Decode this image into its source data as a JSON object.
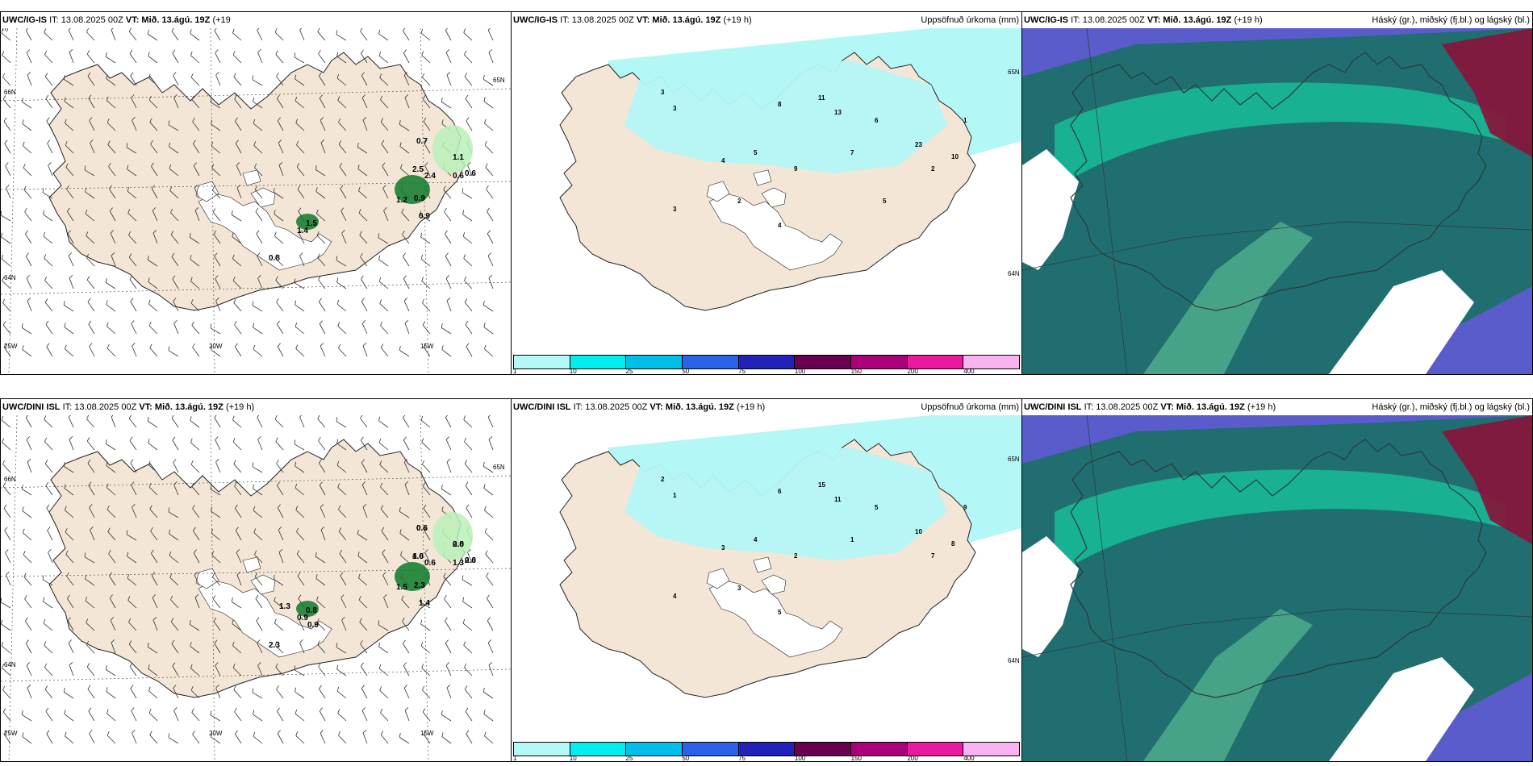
{
  "panels": [
    {
      "id": "p1",
      "header": {
        "src": "UWC/IG-IS",
        "it": "IT: 13.08.2025 00Z",
        "vt": "VT: Mið. 13.ágú. 19Z",
        "lead": "(+19",
        "wrap": "h)",
        "right": ""
      },
      "axis_labels": [
        "66N",
        "64N",
        "25W",
        "20W",
        "15W",
        "65N"
      ],
      "values": [
        "0.7",
        "1.1",
        "0.6",
        "2.5",
        "2.4",
        "0.6",
        "1.2",
        "0.9",
        "0.9",
        "1.5",
        "1.4",
        "0.8"
      ]
    },
    {
      "id": "p2",
      "header": {
        "src": "UWC/IG-IS",
        "it": "IT: 13.08.2025 00Z",
        "vt": "VT: Mið. 13.ágú. 19Z",
        "lead": "(+19 h)",
        "right": "Uppsöfnuð úrkoma (mm)"
      },
      "axis_labels": [
        "65N",
        "64N"
      ],
      "values": [
        "3",
        "3",
        "11",
        "13",
        "23",
        "10",
        "8",
        "6",
        "5",
        "4",
        "2",
        "1",
        "7",
        "9",
        "2",
        "3",
        "4",
        "5"
      ]
    },
    {
      "id": "p3",
      "header": {
        "src": "UWC/IG-IS",
        "it": "IT: 13.08.2025 00Z",
        "vt": "VT: Mið. 13.ágú. 19Z",
        "lead": "(+19 h)",
        "right": "Háský (gr.), miðský (fj.bl.) og lágský (bl.)"
      },
      "axis_labels": [],
      "values": []
    },
    {
      "id": "p4",
      "header": {
        "src": "UWC/DINI ISL",
        "it": "IT: 13.08.2025 00Z",
        "vt": "VT: Mið. 13.ágú. 19Z",
        "lead": "(+19 h)",
        "right": ""
      },
      "axis_labels": [
        "66N",
        "64N",
        "25W",
        "20W",
        "15W",
        "65N"
      ],
      "values": [
        "0.6",
        "0.8",
        "0.6",
        "1.6",
        "0.6",
        "1.3",
        "1.5",
        "2.3",
        "1.4",
        "0.8",
        "0.9",
        "2.3",
        "1.3",
        "0.9",
        "0.6",
        "2.0",
        "2.0",
        "4.0"
      ]
    },
    {
      "id": "p5",
      "header": {
        "src": "UWC/DINI ISL",
        "it": "IT: 13.08.2025 00Z",
        "vt": "VT: Mið. 13.ágú. 19Z",
        "lead": "(+19 h)",
        "right": "Uppsöfnuð úrkoma (mm)"
      },
      "axis_labels": [
        "65N",
        "64N"
      ],
      "values": [
        "2",
        "1",
        "15",
        "11",
        "10",
        "8",
        "6",
        "5",
        "4",
        "3",
        "7",
        "9",
        "1",
        "2",
        "3",
        "4",
        "5"
      ]
    },
    {
      "id": "p6",
      "header": {
        "src": "UWC/DINI ISL",
        "it": "IT: 13.08.2025 00Z",
        "vt": "VT: Mið. 13.ágú. 19Z",
        "lead": "(+19 h)",
        "right": "Háský (gr.), miðský (fj.bl.) og lágský (bl.)"
      },
      "axis_labels": [],
      "values": []
    }
  ],
  "legend": {
    "ticks": [
      "1",
      "10",
      "25",
      "50",
      "75",
      "100",
      "150",
      "200",
      "400"
    ],
    "colors": [
      "#b4f8f8",
      "#00eeee",
      "#00bfea",
      "#2a62ea",
      "#2222b8",
      "#6a0050",
      "#aa007a",
      "#ea1aa0",
      "#f8b4f0"
    ]
  },
  "palette": {
    "land": "#f3e6d6",
    "ice": "#ffffff",
    "precip": "#b3f7f7",
    "green_dark": "#0c7a2a",
    "green_light": "#b8f0b8",
    "cloud_teal": "#1f6f6a",
    "cloud_green": "#16c29a",
    "cloud_blue": "#5b5ccc",
    "cloud_red": "#8a1238",
    "sea": "#ffffff"
  }
}
